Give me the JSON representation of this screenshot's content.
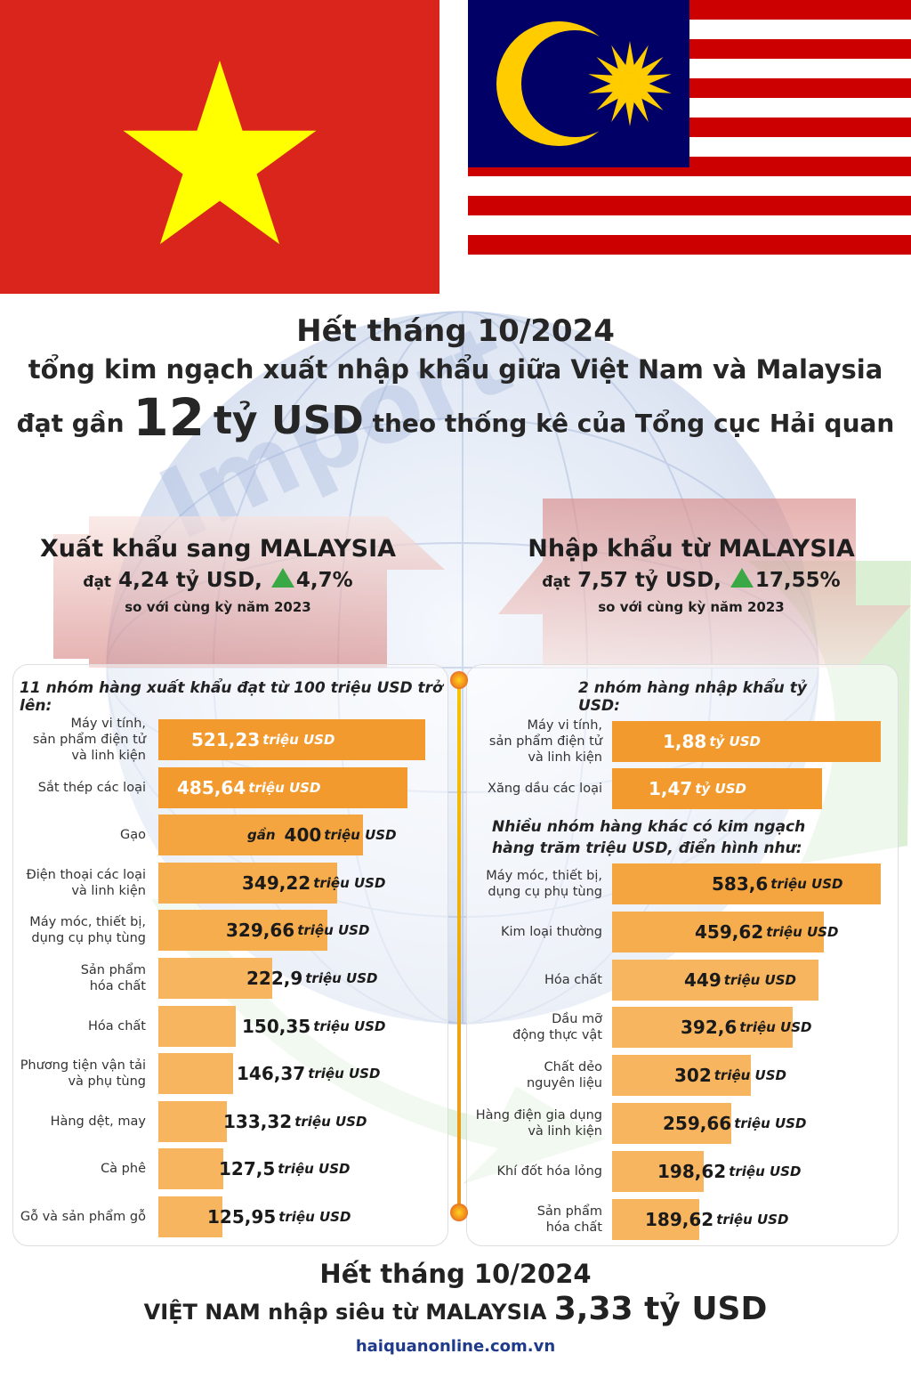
{
  "header": {
    "line1": "Hết tháng 10/2024",
    "line2": "tổng kim ngạch xuất nhập khẩu giữa Việt Nam và Malaysia",
    "line3_pre": "đạt gần",
    "line3_num": "12",
    "line3_unit": "tỷ USD",
    "line3_post": "theo thống kê của Tổng cục Hải quan"
  },
  "export_box": {
    "title": "Xuất khẩu sang MALAYSIA",
    "reach": "đạt",
    "value": "4,24 tỷ USD,",
    "growth": "4,7%",
    "compare": "so với cùng kỳ năm 2023"
  },
  "import_box": {
    "title": "Nhập khẩu từ MALAYSIA",
    "reach": "đạt",
    "value": "7,57 tỷ USD,",
    "growth": "17,55%",
    "compare": "so với cùng kỳ năm 2023"
  },
  "colors": {
    "vn_red": "#da251d",
    "vn_star": "#ffff00",
    "my_red": "#cc0001",
    "my_blue": "#010066",
    "my_yellow": "#ffcc00",
    "bar_dark": "#f29a2e",
    "bar_light": "#f7b560",
    "growth_green": "#3aa845"
  },
  "chart_data": [
    {
      "type": "bar",
      "orientation": "horizontal",
      "title": "11 nhóm hàng xuất khẩu đạt từ 100 triệu USD trở lên:",
      "unit": "triệu USD",
      "categories": [
        "Máy vi tính,\nsản phẩm điện tử\nvà linh kiện",
        "Sắt thép các loại",
        "Gạo",
        "Điện thoại các loại\nvà linh kiện",
        "Máy móc, thiết bị,\ndụng cụ phụ tùng",
        "Sản phẩm\nhóa chất",
        "Hóa chất",
        "Phương tiện vận tải\nvà phụ tùng",
        "Hàng dệt, may",
        "Cà phê",
        "Gỗ và sản phẩm gỗ"
      ],
      "values": [
        521.23,
        485.64,
        400,
        349.22,
        329.66,
        222.9,
        150.35,
        146.37,
        133.32,
        127.5,
        125.95
      ],
      "labels": [
        "521,23",
        "485,64",
        "400",
        "349,22",
        "329,66",
        "222,9",
        "150,35",
        "146,37",
        "133,32",
        "127,5",
        "125,95"
      ],
      "label_prefix": [
        "",
        "",
        "gần",
        "",
        "",
        "",
        "",
        "",
        "",
        "",
        ""
      ]
    },
    {
      "type": "bar",
      "orientation": "horizontal",
      "title": "2 nhóm hàng nhập khẩu tỷ USD:",
      "unit": "tỷ USD",
      "categories": [
        "Máy vi tính,\nsản phẩm điện tử\nvà linh kiện",
        "Xăng dầu các loại"
      ],
      "values": [
        1.88,
        1.47
      ],
      "labels": [
        "1,88",
        "1,47"
      ]
    },
    {
      "type": "bar",
      "orientation": "horizontal",
      "title": "Nhiều nhóm hàng khác có kim ngạch\nhàng trăm triệu USD, điển hình như:",
      "unit": "triệu USD",
      "categories": [
        "Máy móc, thiết bị,\ndụng cụ phụ tùng",
        "Kim loại thường",
        "Hóa chất",
        "Dầu mỡ\nđộng thực vật",
        "Chất dẻo\nnguyên liệu",
        "Hàng điện gia dụng\nvà linh kiện",
        "Khí đốt hóa lỏng",
        "Sản phẩm\nhóa chất"
      ],
      "values": [
        583.6,
        459.62,
        449,
        392.6,
        302,
        259.66,
        198.62,
        189.62
      ],
      "labels": [
        "583,6",
        "459,62",
        "449",
        "392,6",
        "302",
        "259,66",
        "198,62",
        "189,62"
      ]
    }
  ],
  "footer": {
    "line1": "Hết tháng 10/2024",
    "line2_pre": "VIỆT NAM nhập siêu từ MALAYSIA",
    "line2_value": "3,33 tỷ USD",
    "source": "haiquanonline.com.vn"
  }
}
